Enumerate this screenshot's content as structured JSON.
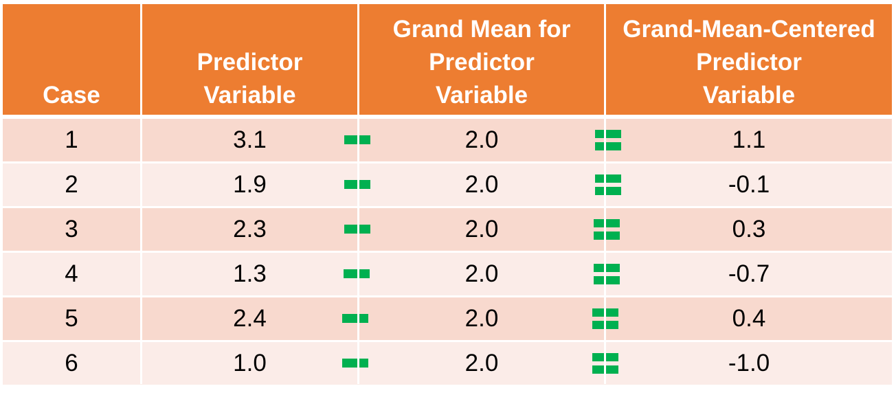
{
  "headers": {
    "case": "Case",
    "predictor": "Predictor\nVariable",
    "grand_mean": "Grand Mean for\nPredictor\nVariable",
    "centered": "Grand-Mean-Centered\nPredictor\nVariable"
  },
  "operators": {
    "minus_color": "#00B050",
    "equals_color": "#00B050"
  },
  "colors": {
    "header_bg": "#ED7D31",
    "row_odd_bg": "#F8D9CE",
    "row_even_bg": "#FBECE8"
  },
  "rows": [
    {
      "case": "1",
      "predictor": "3.1",
      "grand_mean": "2.0",
      "centered": "1.1"
    },
    {
      "case": "2",
      "predictor": "1.9",
      "grand_mean": "2.0",
      "centered": "-0.1"
    },
    {
      "case": "3",
      "predictor": "2.3",
      "grand_mean": "2.0",
      "centered": "0.3"
    },
    {
      "case": "4",
      "predictor": "1.3",
      "grand_mean": "2.0",
      "centered": "-0.7"
    },
    {
      "case": "5",
      "predictor": "2.4",
      "grand_mean": "2.0",
      "centered": "0.4"
    },
    {
      "case": "6",
      "predictor": "1.0",
      "grand_mean": "2.0",
      "centered": "-1.0"
    }
  ]
}
